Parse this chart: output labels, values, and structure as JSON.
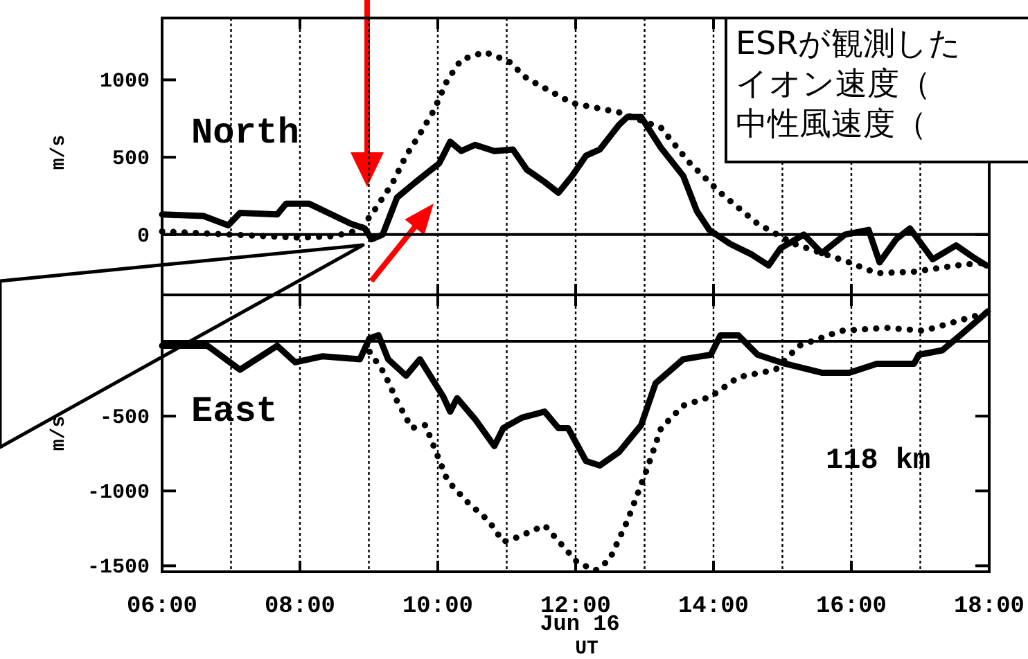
{
  "chart_data": [
    {
      "type": "line",
      "ylabel": "m/s",
      "xlim": [
        6,
        18
      ],
      "ylim": [
        -390,
        1400
      ],
      "yticks": [
        0,
        500,
        1000
      ],
      "xticks": [
        {
          "value": 6,
          "label": null
        },
        {
          "value": 7,
          "label": null
        },
        {
          "value": 8,
          "label": null
        },
        {
          "value": 9,
          "label": null
        },
        {
          "value": 10,
          "label": null
        },
        {
          "value": 11,
          "label": null
        },
        {
          "value": 12,
          "label": null
        },
        {
          "value": 13,
          "label": null
        },
        {
          "value": 14,
          "label": null
        },
        {
          "value": 15,
          "label": null
        },
        {
          "value": 16,
          "label": null
        },
        {
          "value": 17,
          "label": null
        },
        {
          "value": 18,
          "label": null
        }
      ],
      "tick_labels": "y",
      "grid": "x",
      "ref_lines": [
        {
          "axis": "y",
          "value": 0
        }
      ],
      "annotations": [
        "North",
        "ESRが観測した",
        "イオン速度（",
        "中性風速度（"
      ],
      "series": [
        {
          "color": "#000000",
          "line_style": "solid",
          "x": [
            6.0,
            6.6,
            6.96,
            7.13,
            7.67,
            7.8,
            8.13,
            8.74,
            8.94,
            9.04,
            9.2,
            9.41,
            9.68,
            10.02,
            10.18,
            10.34,
            10.54,
            10.82,
            11.09,
            11.29,
            11.55,
            11.75,
            11.95,
            12.15,
            12.35,
            12.63,
            12.75,
            12.95,
            13.24,
            13.56,
            13.76,
            13.94,
            14.24,
            14.56,
            14.8,
            14.97,
            15.31,
            15.57,
            15.91,
            16.25,
            16.41,
            16.65,
            16.85,
            17.18,
            17.52,
            17.78,
            17.96
          ],
          "values": [
            130,
            120,
            60,
            140,
            130,
            200,
            200,
            70,
            40,
            -30,
            0,
            240,
            340,
            460,
            600,
            540,
            580,
            540,
            550,
            420,
            340,
            270,
            380,
            510,
            550,
            710,
            760,
            760,
            560,
            380,
            150,
            30,
            -60,
            -130,
            -200,
            -90,
            0,
            -120,
            0,
            30,
            -180,
            -30,
            40,
            -160,
            -70,
            -150,
            -200
          ]
        },
        {
          "color": "#000000",
          "line_style": "dotted",
          "x": [
            6.0,
            7.0,
            8.0,
            8.5,
            8.87,
            9.07,
            9.34,
            9.54,
            9.74,
            9.94,
            10.14,
            10.34,
            10.68,
            11.03,
            11.29,
            11.95,
            12.63,
            13.24,
            13.64,
            14.1,
            14.64,
            15.17,
            15.97,
            16.37,
            16.91,
            17.52,
            17.96
          ],
          "values": [
            20,
            0,
            -20,
            -10,
            30,
            150,
            330,
            510,
            650,
            800,
            1000,
            1130,
            1180,
            1120,
            1010,
            850,
            790,
            690,
            470,
            270,
            70,
            -60,
            -180,
            -250,
            -240,
            -200,
            -180
          ]
        }
      ]
    },
    {
      "type": "line",
      "ylabel": "m/s",
      "xlabel": "UT",
      "xlim": [
        6,
        18
      ],
      "ylim": [
        -1540,
        310
      ],
      "yticks": [
        -1500,
        -1000,
        -500
      ],
      "xticks": [
        {
          "value": 6,
          "label": "06:00"
        },
        {
          "value": 7,
          "label": null
        },
        {
          "value": 8,
          "label": "08:00"
        },
        {
          "value": 9,
          "label": null
        },
        {
          "value": 10,
          "label": "10:00"
        },
        {
          "value": 11,
          "label": null
        },
        {
          "value": 12,
          "label": "12:00"
        },
        {
          "value": 13,
          "label": null
        },
        {
          "value": 14,
          "label": "14:00"
        },
        {
          "value": 15,
          "label": null
        },
        {
          "value": 16,
          "label": "16:00"
        },
        {
          "value": 17,
          "label": null
        },
        {
          "value": 18,
          "label": "18:00"
        }
      ],
      "grid": "x",
      "ref_lines": [
        {
          "axis": "y",
          "value": 0
        }
      ],
      "annotations": [
        "East",
        "118 km",
        "Jun 16"
      ],
      "series": [
        {
          "color": "#000000",
          "line_style": "solid",
          "x": [
            6.0,
            6.66,
            7.13,
            7.67,
            7.93,
            8.33,
            8.87,
            9.01,
            9.14,
            9.28,
            9.54,
            9.74,
            10.08,
            10.18,
            10.28,
            10.54,
            10.82,
            10.95,
            11.22,
            11.55,
            11.75,
            11.89,
            12.15,
            12.35,
            12.63,
            12.95,
            13.16,
            13.56,
            13.96,
            14.1,
            14.36,
            14.64,
            15.04,
            15.57,
            15.97,
            16.37,
            16.91,
            16.98,
            17.32,
            17.58,
            17.98
          ],
          "values": [
            -30,
            -30,
            -190,
            -30,
            -140,
            -100,
            -120,
            20,
            40,
            -120,
            -230,
            -120,
            -370,
            -470,
            -380,
            -520,
            -700,
            -580,
            -510,
            -470,
            -580,
            -580,
            -800,
            -830,
            -740,
            -560,
            -280,
            -120,
            -90,
            40,
            40,
            -90,
            -150,
            -210,
            -210,
            -150,
            -150,
            -90,
            -60,
            40,
            200
          ]
        },
        {
          "color": "#000000",
          "line_style": "dotted",
          "x": [
            9.01,
            9.22,
            9.41,
            9.62,
            9.82,
            9.94,
            10.14,
            10.42,
            10.74,
            10.95,
            11.15,
            11.55,
            12.03,
            12.29,
            12.49,
            12.75,
            13.03,
            13.24,
            13.56,
            13.96,
            14.36,
            14.9,
            15.24,
            15.85,
            16.51,
            17.05,
            17.58,
            17.96
          ],
          "values": [
            -70,
            -210,
            -400,
            -580,
            -560,
            -700,
            -930,
            -1070,
            -1200,
            -1340,
            -1310,
            -1230,
            -1480,
            -1530,
            -1460,
            -1200,
            -860,
            -580,
            -430,
            -370,
            -240,
            -190,
            -30,
            70,
            90,
            70,
            140,
            190
          ]
        }
      ]
    }
  ]
}
